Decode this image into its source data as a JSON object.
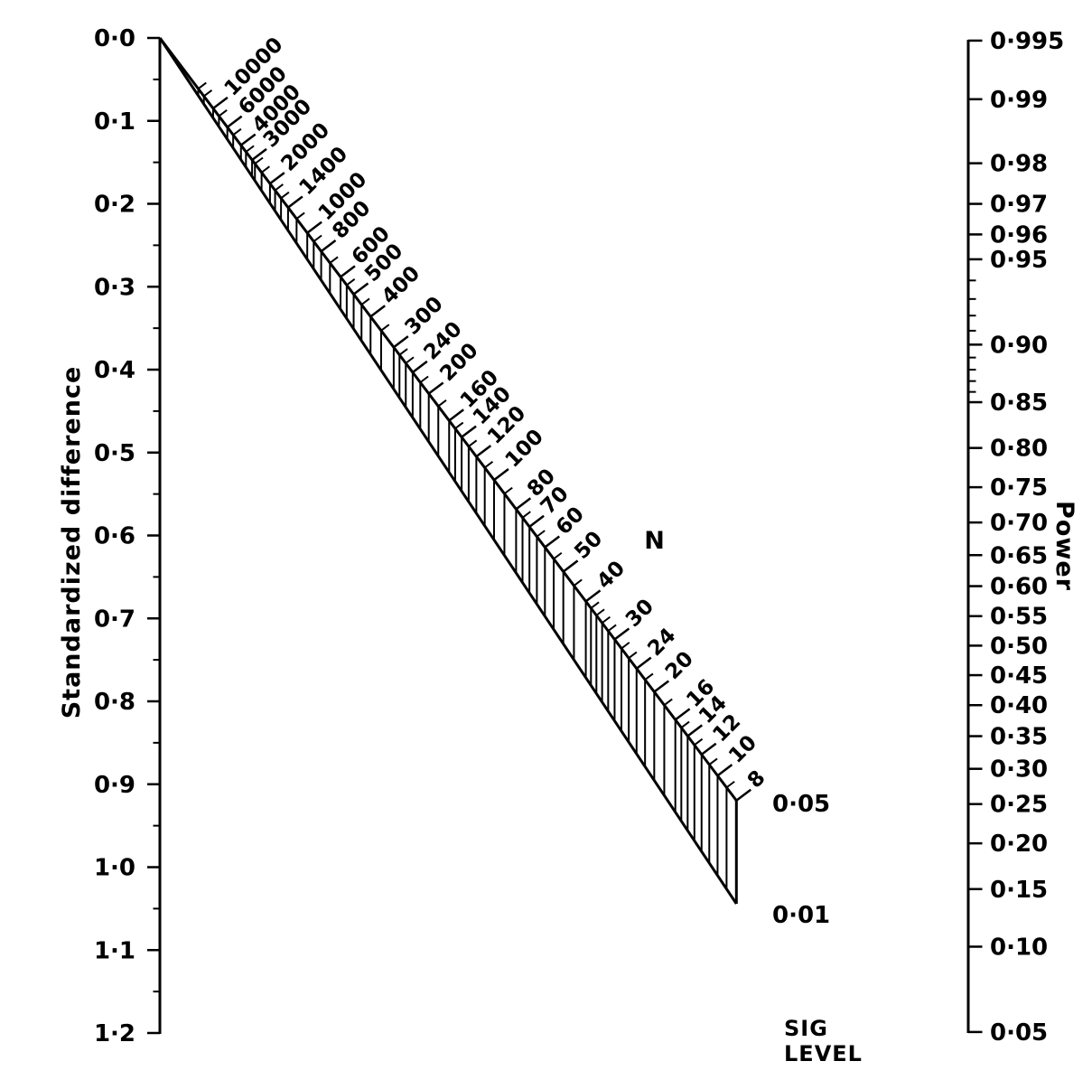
{
  "colors": {
    "ink": "#000000",
    "background": "#ffffff"
  },
  "chart_data": {
    "type": "line",
    "subtype": "nomogram",
    "left_axis": {
      "title": "Standardized difference",
      "range": [
        0,
        1.2
      ],
      "major_tick_step": 0.1,
      "minor_tick_step": 0.05,
      "major_ticks": [
        0.0,
        0.1,
        0.2,
        0.3,
        0.4,
        0.5,
        0.6,
        0.7,
        0.8,
        0.9,
        1.0,
        1.1,
        1.2
      ],
      "tick_labels": [
        "0·0",
        "0·1",
        "0·2",
        "0·3",
        "0·4",
        "0·5",
        "0·6",
        "0·7",
        "0·8",
        "0·9",
        "1·0",
        "1·1",
        "1·2"
      ]
    },
    "right_axis": {
      "title": "Power",
      "scale": "probit",
      "major_ticks": [
        0.995,
        0.99,
        0.98,
        0.97,
        0.96,
        0.95,
        0.9,
        0.85,
        0.8,
        0.75,
        0.7,
        0.65,
        0.6,
        0.55,
        0.5,
        0.45,
        0.4,
        0.35,
        0.3,
        0.25,
        0.2,
        0.15,
        0.1,
        0.05
      ],
      "tick_labels": [
        "0·995",
        "0·99",
        "0·98",
        "0·97",
        "0·96",
        "0·95",
        "0·90",
        "0·85",
        "0·80",
        "0·75",
        "0·70",
        "0·65",
        "0·60",
        "0·55",
        "0·50",
        "0·45",
        "0·40",
        "0·35",
        "0·30",
        "0·25",
        "0·20",
        "0·15",
        "0·10",
        "0·05"
      ],
      "minor_ticks": [
        0.94,
        0.93,
        0.92,
        0.91,
        0.89,
        0.88,
        0.87,
        0.86
      ]
    },
    "n_scale": {
      "title": "N",
      "major_ticks": [
        10000,
        6000,
        4000,
        3000,
        2000,
        1400,
        1000,
        800,
        600,
        500,
        400,
        300,
        240,
        200,
        160,
        140,
        120,
        100,
        80,
        70,
        60,
        50,
        40,
        30,
        24,
        20,
        16,
        14,
        12,
        10,
        8
      ],
      "tick_labels": [
        "10000",
        "6000",
        "4000",
        "3000",
        "2000",
        "1400",
        "1000",
        "800",
        "600",
        "500",
        "400",
        "300",
        "240",
        "200",
        "160",
        "140",
        "120",
        "100",
        "80",
        "70",
        "60",
        "50",
        "40",
        "30",
        "24",
        "20",
        "16",
        "14",
        "12",
        "10",
        "8"
      ],
      "minor_ticks": [
        20000,
        15000,
        8000,
        5000,
        3500,
        2800,
        2400,
        1800,
        1600,
        1200,
        900,
        700,
        550,
        450,
        350,
        280,
        260,
        220,
        180,
        150,
        130,
        110,
        90,
        75,
        65,
        55,
        45,
        38,
        36,
        34,
        32,
        28,
        26,
        22,
        18,
        15,
        13,
        11,
        9
      ],
      "sig_level_upper": "0·05",
      "sig_level_lower": "0·01"
    },
    "sig_level_heading": [
      "SIG",
      "LEVEL"
    ]
  }
}
